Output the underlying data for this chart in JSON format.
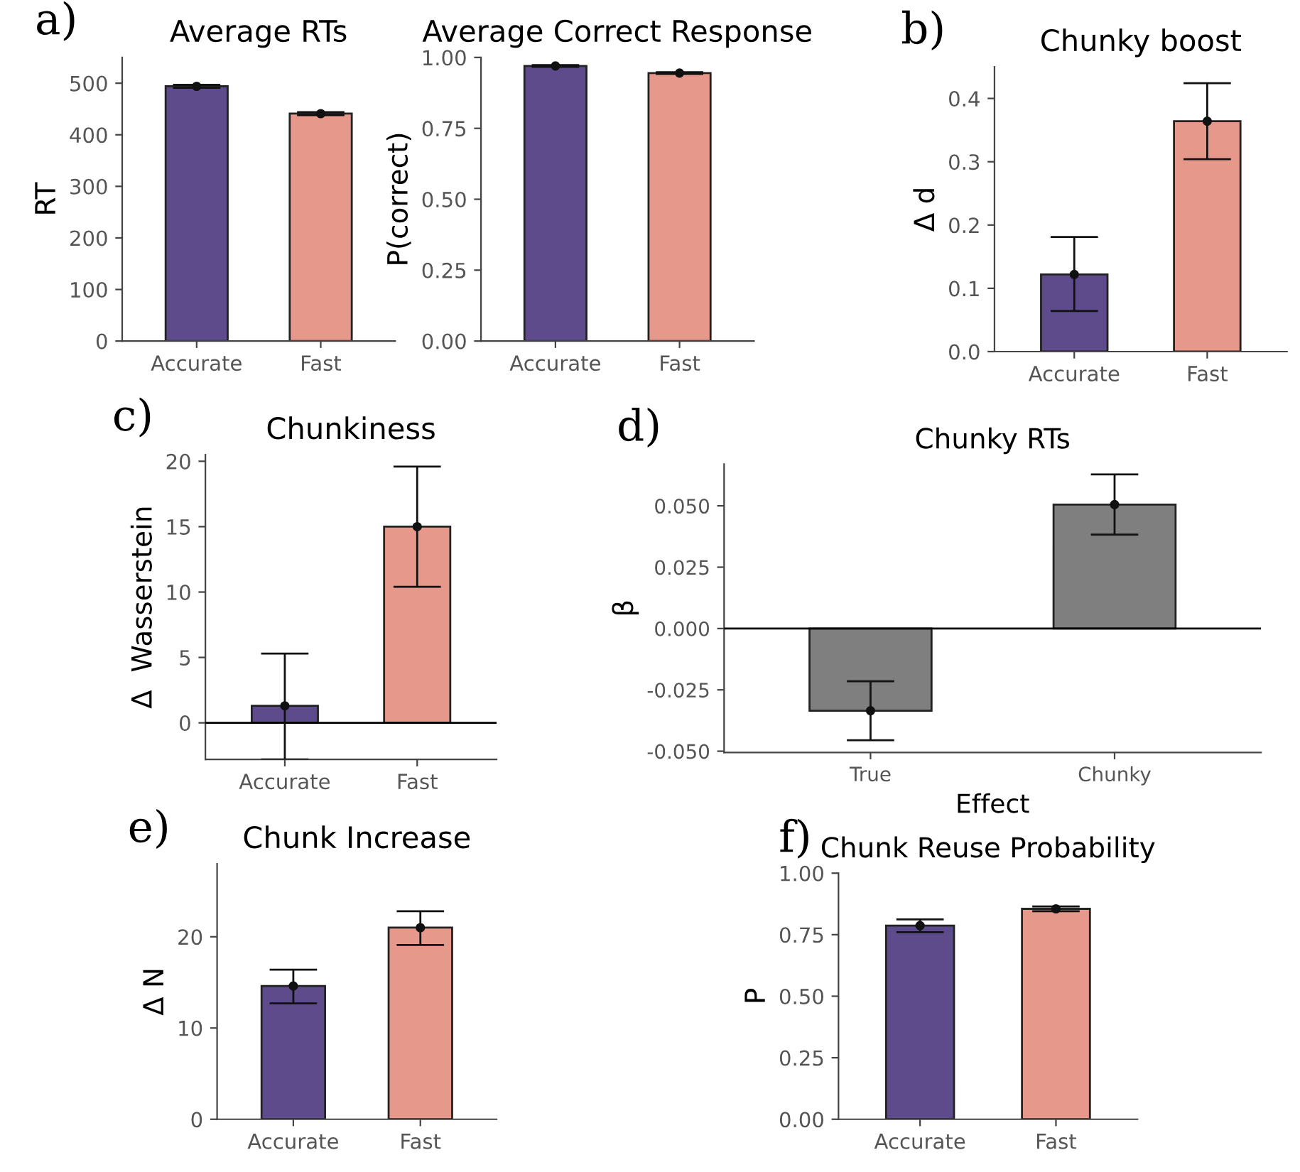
{
  "chart_data": [
    {
      "type": "bar",
      "title": "Average RTs",
      "ylabel": "RT",
      "annotations": [
        "a)"
      ],
      "categories": [
        "Accurate",
        "Fast"
      ],
      "values": [
        494,
        441
      ],
      "errors": [
        [
          491,
          497
        ],
        [
          438,
          444
        ]
      ],
      "colors": [
        "#5e4b8b",
        "#e6998b"
      ],
      "series": [
        {
          "type": "scatter",
          "x": [
            "Accurate",
            "Fast"
          ],
          "values": [
            494,
            441
          ],
          "color": "#111111"
        }
      ],
      "ylim": [
        0,
        550
      ],
      "yticks": [
        0,
        100,
        200,
        300,
        400,
        500
      ]
    },
    {
      "type": "bar",
      "title": "Average Correct Response",
      "ylabel": "P(correct)",
      "categories": [
        "Accurate",
        "Fast"
      ],
      "values": [
        0.97,
        0.945
      ],
      "errors": [
        [
          0.967,
          0.973
        ],
        [
          0.942,
          0.948
        ]
      ],
      "colors": [
        "#5e4b8b",
        "#e6998b"
      ],
      "series": [
        {
          "type": "scatter",
          "x": [
            "Accurate",
            "Fast"
          ],
          "values": [
            0.97,
            0.945
          ],
          "color": "#111111"
        }
      ],
      "ylim": [
        0,
        1.0
      ],
      "yticks": [
        {
          "value": 0,
          "label": "0.00"
        },
        {
          "value": 0.25,
          "label": "0.25"
        },
        {
          "value": 0.5,
          "label": "0.50"
        },
        {
          "value": 0.75,
          "label": "0.75"
        },
        {
          "value": 1.0,
          "label": "1.00"
        }
      ]
    },
    {
      "type": "bar",
      "title": "Chunky boost",
      "ylabel": "Δ d",
      "annotations": [
        "b)"
      ],
      "categories": [
        "Accurate",
        "Fast"
      ],
      "values": [
        0.122,
        0.364
      ],
      "errors": [
        [
          0.064,
          0.181
        ],
        [
          0.304,
          0.424
        ]
      ],
      "colors": [
        "#5e4b8b",
        "#e6998b"
      ],
      "series": [
        {
          "type": "scatter",
          "x": [
            "Accurate",
            "Fast"
          ],
          "values": [
            0.122,
            0.364
          ],
          "color": "#111111"
        }
      ],
      "ylim": [
        0,
        0.45
      ],
      "yticks": [
        {
          "value": 0,
          "label": "0.0"
        },
        0.1,
        0.2,
        0.3,
        0.4
      ]
    },
    {
      "type": "bar",
      "title": "Chunkiness",
      "ylabel": "Δ  Wasserstein",
      "annotations": [
        "c)"
      ],
      "categories": [
        "Accurate",
        "Fast"
      ],
      "values": [
        1.3,
        15.0
      ],
      "errors": [
        [
          -2.8,
          5.3
        ],
        [
          10.4,
          19.6
        ]
      ],
      "colors": [
        "#5e4b8b",
        "#e6998b"
      ],
      "series": [
        {
          "type": "scatter",
          "x": [
            "Accurate",
            "Fast"
          ],
          "values": [
            1.3,
            15.0
          ],
          "color": "#111111"
        }
      ],
      "ylim": [
        -2.8,
        20.5
      ],
      "yticks": [
        0,
        5,
        10,
        15,
        20
      ],
      "ref_lines": [
        {
          "axis": "y",
          "value": 0,
          "color": "#000000"
        }
      ]
    },
    {
      "type": "bar",
      "title": "Chunky RTs",
      "ylabel": "β",
      "xlabel": "Effect",
      "annotations": [
        "d)"
      ],
      "categories": [
        "True",
        "Chunky"
      ],
      "values": [
        -0.0335,
        0.0505
      ],
      "errors": [
        [
          -0.0455,
          -0.0215
        ],
        [
          0.0383,
          0.0628
        ]
      ],
      "colors": [
        "#7f7f7f",
        "#7f7f7f"
      ],
      "series": [
        {
          "type": "scatter",
          "x": [
            "True",
            "Chunky"
          ],
          "values": [
            -0.0335,
            0.0505
          ],
          "color": "#111111"
        }
      ],
      "ylim": [
        -0.0505,
        0.067
      ],
      "yticks": [
        {
          "value": -0.05,
          "label": "-0.050"
        },
        {
          "value": -0.025,
          "label": "-0.025"
        },
        {
          "value": 0,
          "label": "0.000"
        },
        {
          "value": 0.025,
          "label": "0.025"
        },
        {
          "value": 0.05,
          "label": "0.050"
        }
      ],
      "ref_lines": [
        {
          "axis": "y",
          "value": 0,
          "color": "#000000"
        }
      ]
    },
    {
      "type": "bar",
      "title": "Chunk Increase",
      "ylabel": "Δ N",
      "annotations": [
        "e)"
      ],
      "categories": [
        "Accurate",
        "Fast"
      ],
      "values": [
        14.6,
        21.0
      ],
      "errors": [
        [
          12.7,
          16.4
        ],
        [
          19.1,
          22.8
        ]
      ],
      "colors": [
        "#5e4b8b",
        "#e6998b"
      ],
      "series": [
        {
          "type": "scatter",
          "x": [
            "Accurate",
            "Fast"
          ],
          "values": [
            14.6,
            21.0
          ],
          "color": "#111111"
        }
      ],
      "ylim": [
        0,
        28
      ],
      "yticks": [
        0,
        10,
        20
      ]
    },
    {
      "type": "bar",
      "title": "Chunk Reuse Probability",
      "ylabel": "P",
      "annotations": [
        "f)"
      ],
      "categories": [
        "Accurate",
        "Fast"
      ],
      "values": [
        0.787,
        0.855
      ],
      "errors": [
        [
          0.76,
          0.812
        ],
        [
          0.845,
          0.865
        ]
      ],
      "colors": [
        "#5e4b8b",
        "#e6998b"
      ],
      "series": [
        {
          "type": "scatter",
          "x": [
            "Accurate",
            "Fast"
          ],
          "values": [
            0.787,
            0.855
          ],
          "color": "#111111"
        }
      ],
      "ylim": [
        0,
        1.0
      ],
      "yticks": [
        {
          "value": 0,
          "label": "0.00"
        },
        {
          "value": 0.25,
          "label": "0.25"
        },
        {
          "value": 0.5,
          "label": "0.50"
        },
        {
          "value": 0.75,
          "label": "0.75"
        },
        {
          "value": 1.0,
          "label": "1.00"
        }
      ]
    }
  ]
}
